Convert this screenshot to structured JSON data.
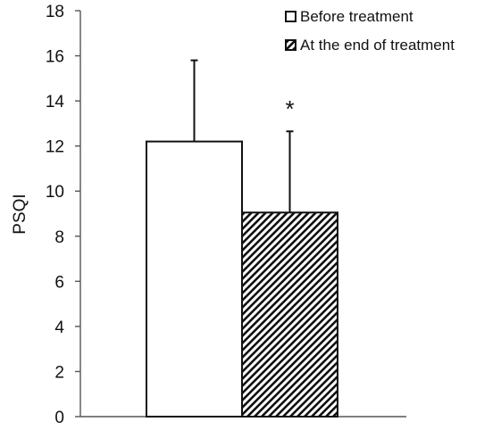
{
  "chart_data": {
    "type": "bar",
    "ylabel": "PSQI",
    "xlabel": "",
    "ylim": [
      0,
      18
    ],
    "ytick_step": 2,
    "grid": false,
    "legend_position": "top-right",
    "series": [
      {
        "name": "Before treatment",
        "value": 12.2,
        "error": 3.6,
        "fill": "solid",
        "color": "#ffffff"
      },
      {
        "name": "At the end of treatment",
        "value": 9.05,
        "error": 3.6,
        "fill": "diagonal-hatch",
        "color": "#111111"
      }
    ],
    "annotations": [
      {
        "text": "*",
        "series": "At the end of treatment"
      }
    ]
  }
}
